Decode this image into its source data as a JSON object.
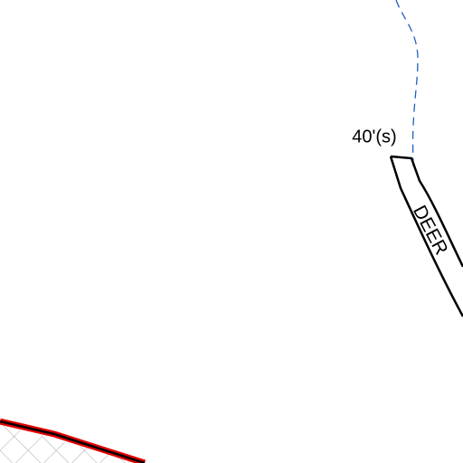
{
  "labels": {
    "contour": "40'(s)",
    "road": "DEER"
  }
}
